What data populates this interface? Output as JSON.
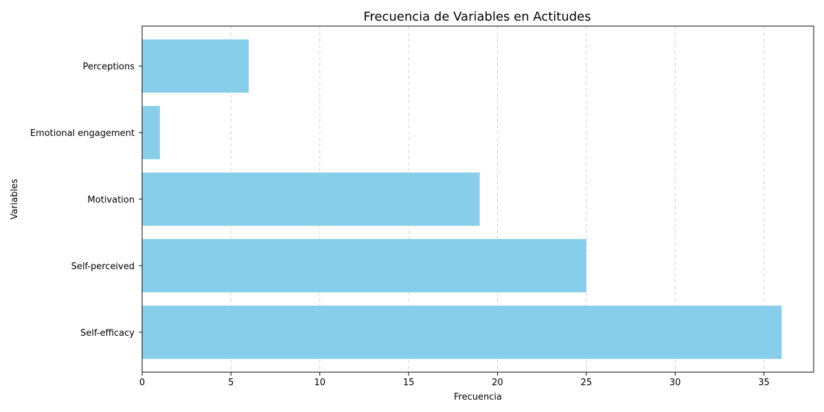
{
  "chart_data": {
    "type": "bar",
    "orientation": "horizontal",
    "title": "Frecuencia de Variables en Actitudes",
    "xlabel": "Frecuencia",
    "ylabel": "Variables",
    "categories": [
      "Self-efficacy",
      "Self-perceived",
      "Motivation",
      "Emotional engagement",
      "Perceptions"
    ],
    "values": [
      36,
      25,
      19,
      1,
      6
    ],
    "xlim": [
      0,
      37.8
    ],
    "xticks": [
      0,
      5,
      10,
      15,
      20,
      25,
      30,
      35
    ],
    "xtick_labels": [
      "0",
      "5",
      "10",
      "15",
      "20",
      "25",
      "30",
      "35"
    ],
    "grid": "x-dashed",
    "bar_color": "#87ceeb"
  }
}
